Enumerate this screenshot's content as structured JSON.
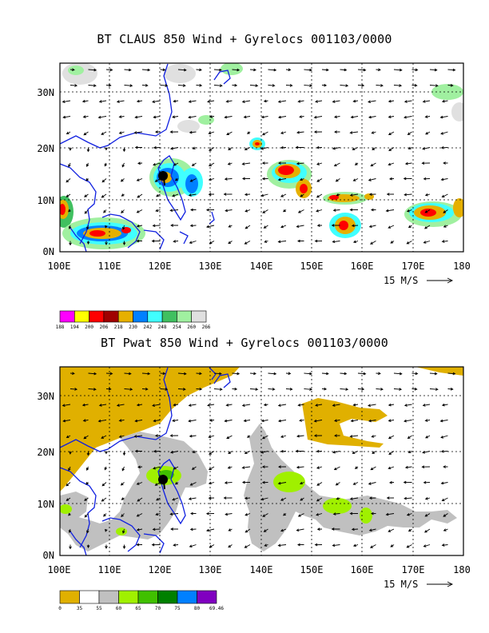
{
  "maps": [
    {
      "title": "BT CLAUS 850 Wind + Gyrelocs 001103/0000",
      "lat_labels": [
        "30N",
        "20N",
        "10N",
        "0N"
      ],
      "lon_labels": [
        "100E",
        "110E",
        "120E",
        "130E",
        "140E",
        "150E",
        "160E",
        "170E",
        "180"
      ],
      "vector_scale": "15 M/S",
      "legend": {
        "colors": [
          "#ff00ff",
          "#ffff00",
          "#ff0000",
          "#a00000",
          "#e6b000",
          "#0080ff",
          "#40ffff",
          "#40c060",
          "#a0f0a0",
          "#e0e0e0"
        ],
        "labels": [
          "188",
          "194",
          "200",
          "206",
          "218",
          "230",
          "242",
          "248",
          "254",
          "260",
          "266"
        ]
      }
    },
    {
      "title": "BT Pwat 850 Wind + Gyrelocs 001103/0000",
      "lat_labels": [
        "30N",
        "20N",
        "10N",
        "0N"
      ],
      "lon_labels": [
        "100E",
        "110E",
        "120E",
        "130E",
        "140E",
        "150E",
        "160E",
        "170E",
        "180"
      ],
      "vector_scale": "15 M/S",
      "legend": {
        "colors": [
          "#e0b000",
          "#ffffff",
          "#c0c0c0",
          "#a0f000",
          "#40c000",
          "#008000",
          "#0080ff",
          "#8000c0"
        ],
        "labels": [
          "0",
          "35",
          "55",
          "60",
          "65",
          "70",
          "75",
          "80",
          "69.46"
        ]
      }
    }
  ]
}
